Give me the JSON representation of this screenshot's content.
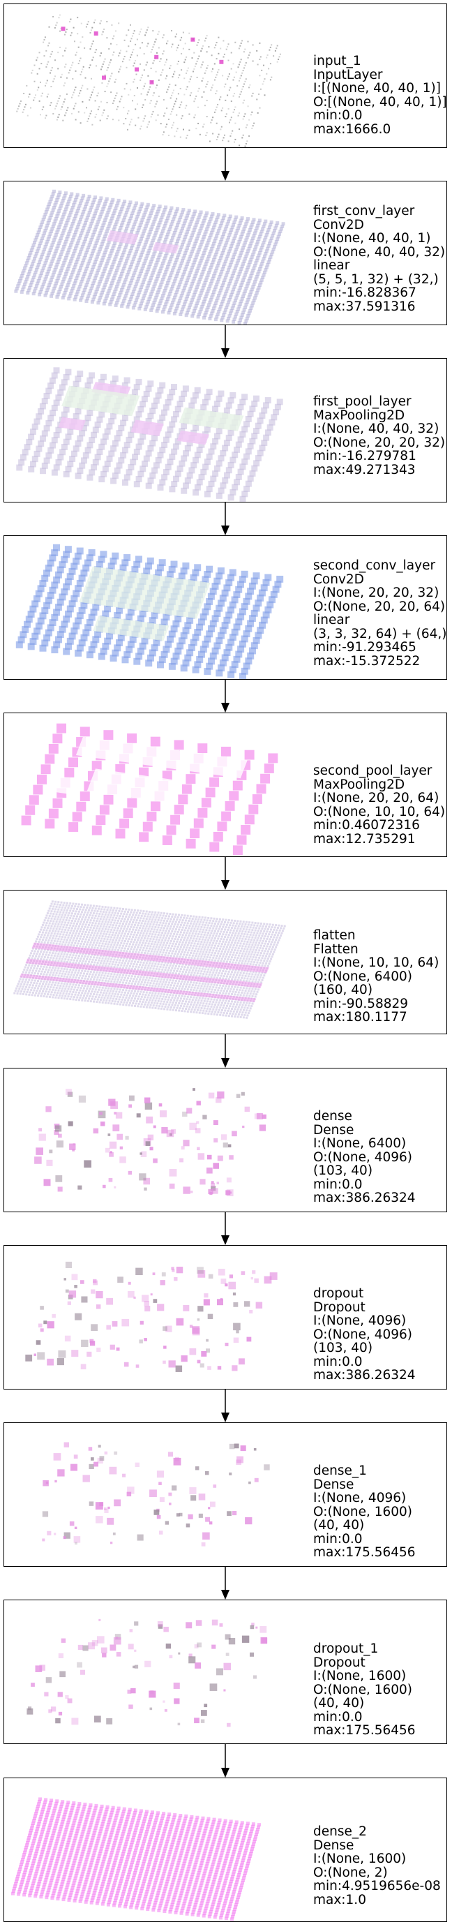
{
  "colors": {
    "line": "#000000",
    "input_cell": "#9a9a9a",
    "input_hot": "#e040c8",
    "conv_cell": "#b0aed6",
    "pool_cell": "#c0b6da",
    "conv2_cell": "#7f9de8",
    "pink_cell": "#f06ee8",
    "dense_cell": "#e38fe0",
    "output_cell": "#f37cf0",
    "hilite": "#f0c8f4",
    "greenish": "#e6f2e6"
  },
  "layers": [
    {
      "lines": [
        "input_1",
        "InputLayer",
        "I:[(None, 40, 40, 1)]",
        "O:[(None, 40, 40, 1)]",
        "min:0.0",
        "max:1666.0"
      ]
    },
    {
      "lines": [
        "first_conv_layer",
        "Conv2D",
        "I:(None, 40, 40, 1)",
        "O:(None, 40, 40, 32)",
        "linear",
        "(5, 5, 1, 32) + (32,)",
        "min:-16.828367",
        "max:37.591316"
      ]
    },
    {
      "lines": [
        "first_pool_layer",
        "MaxPooling2D",
        "I:(None, 40, 40, 32)",
        "O:(None, 20, 20, 32)",
        "min:-16.279781",
        "max:49.271343"
      ]
    },
    {
      "lines": [
        "second_conv_layer",
        "Conv2D",
        "I:(None, 20, 20, 32)",
        "O:(None, 20, 20, 64)",
        "linear",
        "(3, 3, 32, 64) + (64,)",
        "min:-91.293465",
        "max:-15.372522"
      ]
    },
    {
      "lines": [
        "second_pool_layer",
        "MaxPooling2D",
        "I:(None, 20, 20, 64)",
        "O:(None, 10, 10, 64)",
        "min:0.46072316",
        "max:12.735291"
      ]
    },
    {
      "lines": [
        "flatten",
        "Flatten",
        "I:(None, 10, 10, 64)",
        "O:(None, 6400)",
        "(160, 40)",
        "min:-90.58829",
        "max:180.1177"
      ]
    },
    {
      "lines": [
        "dense",
        "Dense",
        "I:(None, 6400)",
        "O:(None, 4096)",
        "(103, 40)",
        "min:0.0",
        "max:386.26324"
      ]
    },
    {
      "lines": [
        "dropout",
        "Dropout",
        "I:(None, 4096)",
        "O:(None, 4096)",
        "(103, 40)",
        "min:0.0",
        "max:386.26324"
      ]
    },
    {
      "lines": [
        "dense_1",
        "Dense",
        "I:(None, 4096)",
        "O:(None, 1600)",
        "(40, 40)",
        "min:0.0",
        "max:175.56456"
      ]
    },
    {
      "lines": [
        "dropout_1",
        "Dropout",
        "I:(None, 1600)",
        "O:(None, 1600)",
        "(40, 40)",
        "min:0.0",
        "max:175.56456"
      ]
    },
    {
      "lines": [
        "dense_2",
        "Dense",
        "I:(None, 1600)",
        "O:(None, 2)",
        "min:4.9519656e-08",
        "max:1.0"
      ]
    }
  ]
}
